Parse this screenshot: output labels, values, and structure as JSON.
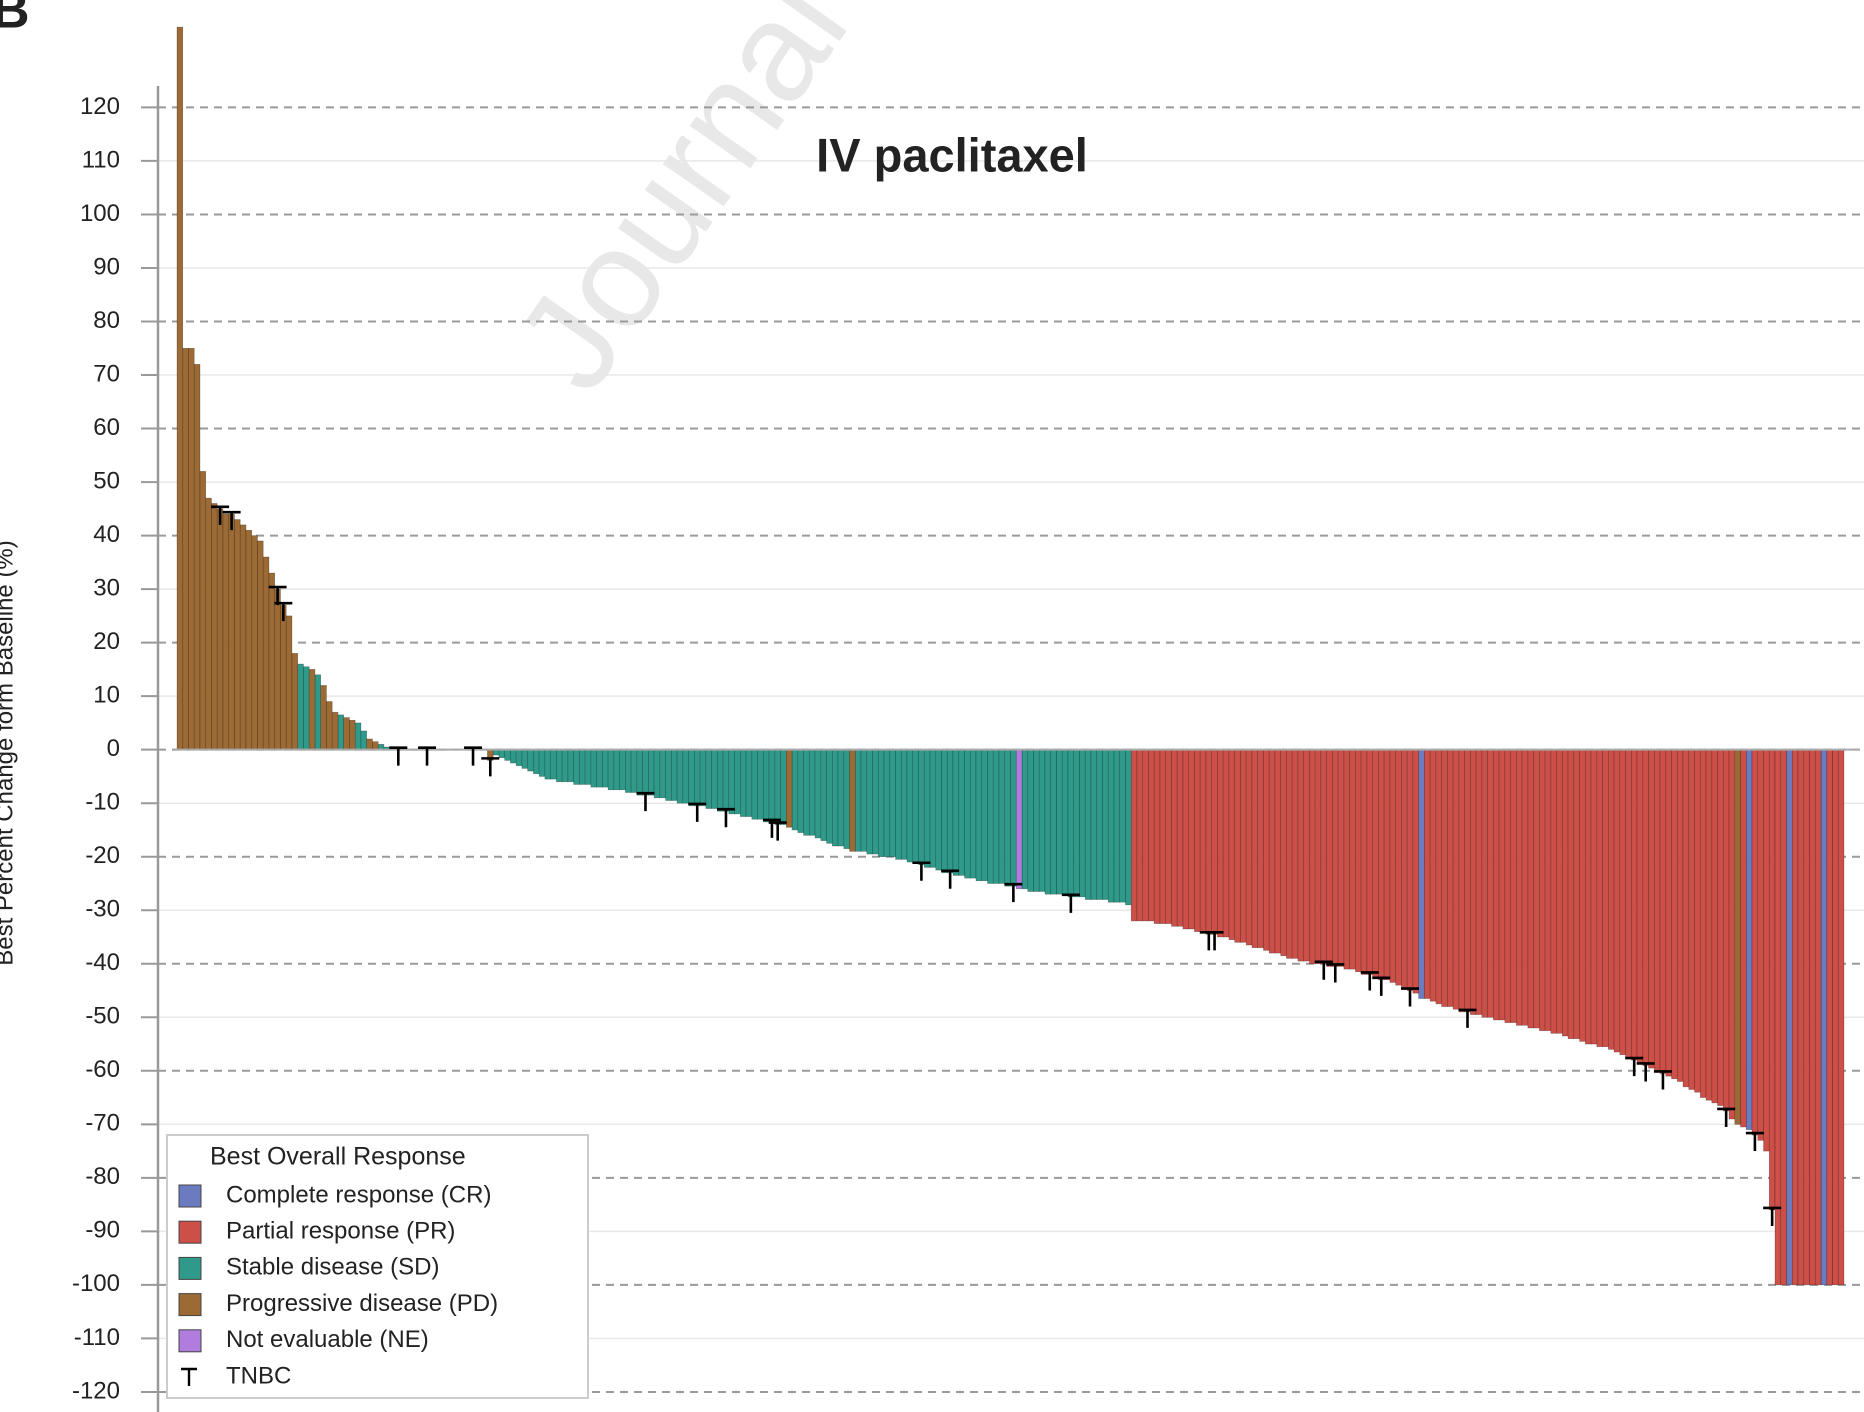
{
  "chart_data": {
    "type": "bar",
    "title": "IV paclitaxel",
    "ylabel": "Best Percent Change form Baseline (%)",
    "panel_label": "B",
    "watermark": "Journal",
    "legend_title": "Best Overall Response",
    "legend": "lower left",
    "grid": true,
    "ylim": [
      -123,
      124
    ],
    "yticks": [
      -120,
      -110,
      -100,
      -90,
      -80,
      -70,
      -60,
      -50,
      -40,
      -30,
      -20,
      -10,
      0,
      10,
      20,
      30,
      40,
      50,
      60,
      70,
      80,
      90,
      100,
      110,
      120
    ],
    "series": [
      {
        "name": "Complete response (CR)",
        "color": "#6a7bbf",
        "x": [
          216,
          273,
          280,
          286
        ],
        "values": [
          -46.5,
          -71,
          -100,
          -100
        ]
      },
      {
        "name": "Partial response (PR)",
        "color": "#cc4f48",
        "x": [
          166,
          167,
          168,
          169,
          170,
          171,
          172,
          173,
          174,
          175,
          176,
          177,
          178,
          179,
          180,
          181,
          182,
          183,
          184,
          185,
          186,
          187,
          188,
          189,
          190,
          191,
          192,
          193,
          194,
          195,
          196,
          197,
          198,
          199,
          200,
          201,
          202,
          203,
          204,
          205,
          206,
          207,
          208,
          209,
          210,
          211,
          212,
          213,
          214,
          215,
          217,
          218,
          219,
          220,
          221,
          222,
          223,
          224,
          225,
          226,
          227,
          228,
          229,
          230,
          231,
          232,
          233,
          234,
          235,
          236,
          237,
          238,
          239,
          240,
          241,
          242,
          243,
          244,
          245,
          246,
          247,
          248,
          249,
          250,
          251,
          252,
          253,
          254,
          255,
          256,
          257,
          258,
          259,
          260,
          261,
          262,
          263,
          264,
          265,
          266,
          267,
          268,
          269,
          270,
          272,
          274,
          275,
          276,
          277,
          278,
          279,
          281,
          282,
          283,
          284,
          285,
          287,
          288,
          289
        ],
        "values": [
          -32,
          -32,
          -32,
          -32,
          -32.5,
          -32.5,
          -32.5,
          -33,
          -33,
          -33.5,
          -33.5,
          -34,
          -34,
          -34.5,
          -34.5,
          -35,
          -35,
          -35.5,
          -36,
          -36,
          -36.5,
          -37,
          -37,
          -37.5,
          -38,
          -38,
          -38.5,
          -39,
          -39,
          -39.5,
          -39.5,
          -40,
          -40,
          -40,
          -40.5,
          -40.5,
          -40.5,
          -41,
          -41,
          -41.5,
          -42,
          -42,
          -42.5,
          -43,
          -43,
          -43.5,
          -44,
          -44.5,
          -45,
          -45.5,
          -46.5,
          -47,
          -47.5,
          -48,
          -48,
          -48.5,
          -49,
          -49,
          -49.5,
          -49.5,
          -50,
          -50,
          -50.5,
          -50.5,
          -51,
          -51,
          -51.5,
          -51.5,
          -52,
          -52,
          -52.5,
          -52.5,
          -53,
          -53,
          -53.5,
          -54,
          -54,
          -54.5,
          -55,
          -55,
          -55.5,
          -55.5,
          -56,
          -56.5,
          -57,
          -57.5,
          -58,
          -58.5,
          -59,
          -59.5,
          -60,
          -60.5,
          -61,
          -61.5,
          -62,
          -63,
          -63.5,
          -64,
          -65,
          -65.5,
          -66,
          -66.5,
          -67.5,
          -69,
          -70.5,
          -72,
          -73,
          -75,
          -86,
          -100,
          -100,
          -100,
          -100,
          -100,
          -100,
          -100,
          -100,
          -100,
          -100
        ]
      },
      {
        "name": "Stable disease (SD)",
        "color": "#2f9a8a",
        "x": [
          21,
          22,
          24,
          28,
          31,
          32,
          35,
          36,
          37,
          38,
          39,
          40,
          41,
          42,
          43,
          44,
          45,
          46,
          47,
          48,
          49,
          50,
          51,
          52,
          53,
          55,
          56,
          57,
          58,
          59,
          60,
          61,
          62,
          63,
          64,
          65,
          66,
          67,
          68,
          69,
          70,
          71,
          72,
          73,
          74,
          75,
          76,
          77,
          78,
          79,
          80,
          81,
          82,
          83,
          84,
          85,
          86,
          87,
          88,
          89,
          90,
          91,
          92,
          93,
          94,
          95,
          96,
          97,
          98,
          99,
          100,
          101,
          102,
          103,
          104,
          105,
          107,
          108,
          109,
          110,
          111,
          112,
          113,
          114,
          115,
          116,
          118,
          119,
          120,
          121,
          122,
          123,
          124,
          125,
          126,
          127,
          128,
          129,
          130,
          131,
          132,
          133,
          134,
          135,
          136,
          137,
          138,
          139,
          140,
          141,
          142,
          143,
          144,
          145,
          147,
          148,
          149,
          150,
          151,
          152,
          153,
          154,
          155,
          156,
          157,
          158,
          159,
          160,
          161,
          162,
          163,
          164,
          165
        ],
        "values": [
          16,
          15.5,
          14,
          6.5,
          5,
          3.5,
          1,
          0.5,
          0,
          0,
          0,
          0,
          0,
          0,
          0,
          0,
          0,
          0,
          0,
          0,
          0,
          0,
          0,
          0,
          0,
          -1,
          -1.5,
          -2,
          -2.5,
          -3,
          -3.5,
          -4,
          -4.5,
          -5,
          -5.5,
          -5.5,
          -6,
          -6,
          -6,
          -6.5,
          -6.5,
          -6.5,
          -7,
          -7,
          -7,
          -7.5,
          -7.5,
          -7.5,
          -8,
          -8,
          -8.5,
          -8.5,
          -8.5,
          -9,
          -9,
          -9.5,
          -9.5,
          -10,
          -10,
          -10.5,
          -10.5,
          -10.5,
          -11,
          -11,
          -11.5,
          -11.5,
          -12,
          -12,
          -12.5,
          -12.5,
          -13,
          -13,
          -13.5,
          -13.5,
          -14,
          -14,
          -15,
          -15.5,
          -16,
          -16,
          -16.5,
          -17,
          -17.5,
          -18,
          -18,
          -18.5,
          -19,
          -19,
          -19.5,
          -19.5,
          -20,
          -20,
          -20,
          -20.5,
          -20.5,
          -21,
          -21,
          -21.5,
          -22,
          -22,
          -22.5,
          -23,
          -23,
          -23.5,
          -23.5,
          -24,
          -24,
          -24.5,
          -24.5,
          -25,
          -25,
          -25,
          -25.5,
          -25.5,
          -26,
          -26.5,
          -26.5,
          -26.5,
          -27,
          -27,
          -27,
          -27,
          -27.5,
          -27.5,
          -27.5,
          -28,
          -28,
          -28,
          -28,
          -28.5,
          -28.5,
          -28.5,
          -29
        ]
      },
      {
        "name": "Progressive disease (PD)",
        "color": "#9c6a34",
        "x": [
          0,
          1,
          2,
          3,
          4,
          5,
          6,
          7,
          8,
          9,
          10,
          11,
          12,
          13,
          14,
          15,
          16,
          17,
          18,
          19,
          20,
          23,
          25,
          26,
          27,
          29,
          30,
          33,
          34,
          54,
          106,
          117,
          271
        ],
        "values": [
          135,
          75,
          75,
          72,
          52,
          47,
          46,
          45,
          44,
          44,
          43,
          42,
          41,
          40,
          39,
          36,
          33,
          30,
          27,
          25,
          18,
          15,
          12,
          9,
          7,
          6,
          5.5,
          2,
          1.5,
          -2,
          -14.5,
          -19,
          -70
        ]
      },
      {
        "name": "Not evaluable (NE)",
        "color": "#b07ddf",
        "x": [
          146
        ],
        "values": [
          -26
        ]
      },
      {
        "name": "TNBC",
        "color": "#000000",
        "marker": "T",
        "x": [
          7,
          9,
          17,
          18,
          38,
          43,
          51,
          54,
          81,
          90,
          95,
          103,
          104,
          129,
          134,
          145,
          155,
          179,
          180,
          199,
          201,
          207,
          209,
          214,
          224,
          253,
          255,
          258,
          269,
          274,
          277
        ],
        "values": [
          45,
          44,
          30,
          27,
          0,
          0,
          0,
          -2,
          -8.5,
          -10.5,
          -11.5,
          -13.5,
          -14,
          -21.5,
          -23,
          -25.5,
          -27.5,
          -34.5,
          -34.5,
          -40,
          -40.5,
          -42,
          -43,
          -45,
          -49,
          -58,
          -59,
          -60.5,
          -67.5,
          -72,
          -86
        ]
      }
    ]
  }
}
